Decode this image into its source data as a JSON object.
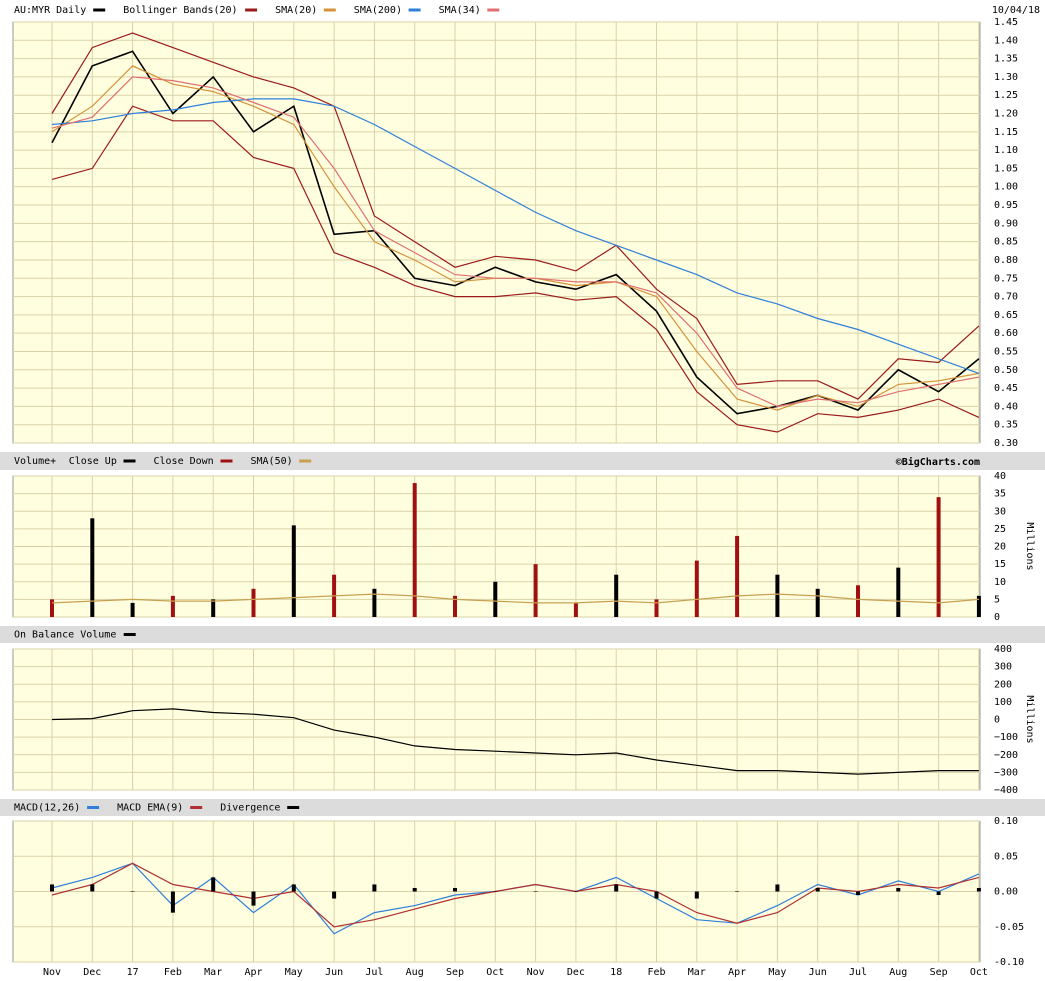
{
  "chart_data": [
    {
      "type": "line",
      "date": "10/04/18",
      "ylim": [
        0.3,
        1.45
      ],
      "yticks": [
        1.45,
        {
          "value": 1.4,
          "label": "1.40"
        },
        1.35,
        {
          "value": 1.3,
          "label": "1.30"
        },
        1.25,
        {
          "value": 1.2,
          "label": "1.20"
        },
        1.15,
        {
          "value": 1.1,
          "label": "1.10"
        },
        1.05,
        {
          "value": 1.0,
          "label": "1.00"
        },
        0.95,
        {
          "value": 0.9,
          "label": "0.90"
        },
        0.85,
        {
          "value": 0.8,
          "label": "0.80"
        },
        0.75,
        {
          "value": 0.7,
          "label": "0.70"
        },
        0.65,
        {
          "value": 0.6,
          "label": "0.60"
        },
        0.55,
        {
          "value": 0.5,
          "label": "0.50"
        },
        0.45,
        {
          "value": 0.4,
          "label": "0.40"
        },
        0.35,
        {
          "value": 0.3,
          "label": "0.30"
        }
      ],
      "grid": true,
      "series": [
        {
          "name": "AU:MYR Daily",
          "color": "#000000",
          "values": [
            1.12,
            1.33,
            1.37,
            1.2,
            1.3,
            1.15,
            1.22,
            0.87,
            0.88,
            0.75,
            0.73,
            0.78,
            0.74,
            0.72,
            0.76,
            0.66,
            0.48,
            0.38,
            0.4,
            0.43,
            0.39,
            0.5,
            0.44,
            0.53
          ]
        },
        {
          "name": "Bollinger Bands(20)",
          "color": "#9b1b1b",
          "upper": [
            1.2,
            1.38,
            1.42,
            1.38,
            1.34,
            1.3,
            1.27,
            1.22,
            0.92,
            0.85,
            0.78,
            0.81,
            0.8,
            0.77,
            0.84,
            0.72,
            0.64,
            0.46,
            0.47,
            0.47,
            0.42,
            0.53,
            0.52,
            0.62
          ],
          "lower": [
            1.02,
            1.05,
            1.22,
            1.18,
            1.18,
            1.08,
            1.05,
            0.82,
            0.78,
            0.73,
            0.7,
            0.7,
            0.71,
            0.69,
            0.7,
            0.61,
            0.44,
            0.35,
            0.33,
            0.38,
            0.37,
            0.39,
            0.42,
            0.37
          ]
        },
        {
          "name": "SMA(20)",
          "color": "#d4923a",
          "values": [
            1.15,
            1.22,
            1.33,
            1.28,
            1.26,
            1.22,
            1.17,
            1.0,
            0.85,
            0.8,
            0.74,
            0.75,
            0.75,
            0.73,
            0.74,
            0.7,
            0.55,
            0.42,
            0.39,
            0.43,
            0.4,
            0.46,
            0.47,
            0.49
          ]
        },
        {
          "name": "SMA(200)",
          "color": "#2f7fd8",
          "values": [
            1.17,
            1.18,
            1.2,
            1.21,
            1.23,
            1.24,
            1.24,
            1.22,
            1.17,
            1.11,
            1.05,
            0.99,
            0.93,
            0.88,
            0.84,
            0.8,
            0.76,
            0.71,
            0.68,
            0.64,
            0.61,
            0.57,
            0.53,
            0.49
          ]
        },
        {
          "name": "SMA(34)",
          "color": "#e07070",
          "values": [
            1.16,
            1.19,
            1.3,
            1.29,
            1.27,
            1.23,
            1.19,
            1.05,
            0.88,
            0.82,
            0.76,
            0.75,
            0.75,
            0.74,
            0.74,
            0.71,
            0.6,
            0.45,
            0.4,
            0.42,
            0.41,
            0.44,
            0.46,
            0.48
          ]
        }
      ]
    },
    {
      "type": "bar",
      "title": "Volume+",
      "credit": "©BigCharts.com",
      "y_label": "Millions",
      "ylim": [
        0,
        40
      ],
      "yticks": [
        40,
        35,
        30,
        25,
        20,
        15,
        10,
        5,
        0
      ],
      "grid": true,
      "series": [
        {
          "name": "Close Up",
          "color": "#000000",
          "type": "bar",
          "values": [
            null,
            28,
            4,
            null,
            5,
            null,
            26,
            null,
            8,
            null,
            null,
            10,
            null,
            null,
            12,
            null,
            null,
            null,
            12,
            8,
            null,
            14,
            null,
            6
          ]
        },
        {
          "name": "Close Down",
          "color": "#a01010",
          "type": "bar",
          "values": [
            5,
            null,
            null,
            6,
            null,
            8,
            null,
            12,
            null,
            38,
            6,
            null,
            15,
            4,
            null,
            5,
            16,
            23,
            null,
            null,
            9,
            null,
            34,
            null
          ]
        },
        {
          "name": "SMA(50)",
          "color": "#c8a050",
          "values": [
            4,
            4.5,
            5,
            4.5,
            4.5,
            5,
            5.5,
            6,
            6.5,
            6,
            5,
            4.5,
            4,
            4,
            4.5,
            4,
            5,
            6,
            6.5,
            6,
            5,
            4.5,
            4,
            5
          ]
        }
      ]
    },
    {
      "type": "line",
      "y_label": "Millions",
      "ylim": [
        -400,
        400
      ],
      "yticks": [
        400,
        300,
        200,
        100,
        0,
        {
          "value": -100,
          "label": "−100"
        },
        {
          "value": -200,
          "label": "−200"
        },
        {
          "value": -300,
          "label": "−300"
        },
        {
          "value": -400,
          "label": "−400"
        }
      ],
      "grid": true,
      "series": [
        {
          "name": "On Balance Volume",
          "color": "#000000",
          "values": [
            0,
            5,
            50,
            60,
            40,
            30,
            10,
            -60,
            -100,
            -150,
            -170,
            -180,
            -190,
            -200,
            -190,
            -230,
            -260,
            -290,
            -290,
            -300,
            -310,
            -300,
            -290,
            -290
          ]
        }
      ]
    },
    {
      "type": "line",
      "ylim": [
        -0.1,
        0.1
      ],
      "yticks": [
        {
          "value": 0.1,
          "label": "0.10"
        },
        0.05,
        {
          "value": 0.0,
          "label": "0.00"
        },
        -0.05,
        {
          "value": -0.1,
          "label": "-0.10"
        }
      ],
      "grid": true,
      "categories": [
        "Nov",
        "Dec",
        "17",
        "Feb",
        "Mar",
        "Apr",
        "May",
        "Jun",
        "Jul",
        "Aug",
        "Sep",
        "Oct",
        "Nov",
        "Dec",
        "18",
        "Feb",
        "Mar",
        "Apr",
        "May",
        "Jun",
        "Jul",
        "Aug",
        "Sep",
        "Oct"
      ],
      "series": [
        {
          "name": "MACD(12,26)",
          "color": "#2f7fd8",
          "values": [
            0.005,
            0.02,
            0.04,
            -0.02,
            0.02,
            -0.03,
            0.01,
            -0.06,
            -0.03,
            -0.02,
            -0.005,
            0.0,
            0.01,
            0.0,
            0.02,
            -0.01,
            -0.04,
            -0.045,
            -0.02,
            0.01,
            -0.005,
            0.015,
            0.0,
            0.025
          ]
        },
        {
          "name": "MACD EMA(9)",
          "color": "#b03030",
          "values": [
            -0.005,
            0.01,
            0.04,
            0.01,
            0.0,
            -0.01,
            0.0,
            -0.05,
            -0.04,
            -0.025,
            -0.01,
            0.0,
            0.01,
            0.0,
            0.01,
            0.0,
            -0.03,
            -0.045,
            -0.03,
            0.005,
            0.0,
            0.01,
            0.005,
            0.02
          ]
        },
        {
          "name": "Divergence",
          "color": "#000000",
          "type": "bar",
          "values": [
            0.01,
            0.01,
            0,
            -0.03,
            0.02,
            -0.02,
            0.01,
            -0.01,
            0.01,
            0.005,
            0.005,
            0,
            0,
            0,
            0.01,
            -0.01,
            -0.01,
            0,
            0.01,
            0.005,
            -0.005,
            0.005,
            -0.005,
            0.005
          ]
        }
      ]
    }
  ]
}
